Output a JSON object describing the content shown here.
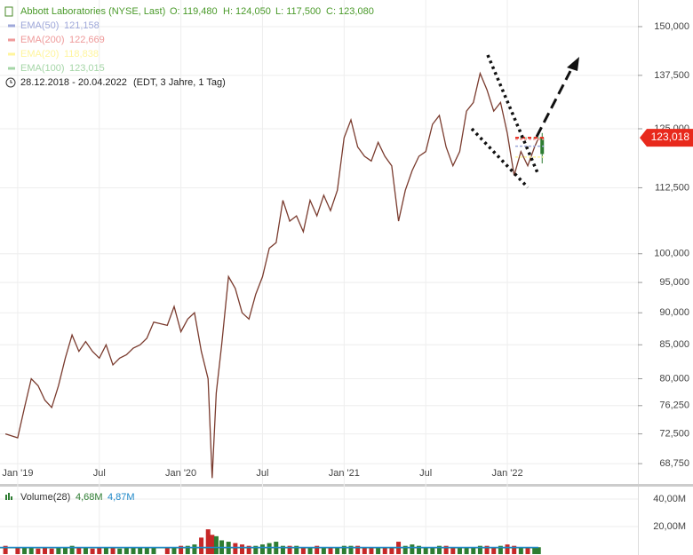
{
  "chart_data": [
    {
      "type": "line",
      "title": "Abbott Laboratories (NYSE, Last)",
      "ohlc": [
        {
          "value": 119480,
          "label": "O: 119,480"
        },
        {
          "value": 124050,
          "label": "H: 124,050"
        },
        {
          "value": 117500,
          "label": "L: 117,500"
        },
        {
          "value": 123080,
          "label": "C: 123,080"
        }
      ],
      "indicators": [
        {
          "name": "EMA(50)",
          "value": 121158,
          "value_label": "121,158",
          "color": "#9fa8da"
        },
        {
          "name": "EMA(200)",
          "value": 122669,
          "value_label": "122,669",
          "color": "#ef9a9a"
        },
        {
          "name": "EMA(20)",
          "value": 118838,
          "value_label": "118,838",
          "color": "#fff59d"
        },
        {
          "name": "EMA(100)",
          "value": 123015,
          "value_label": "123,015",
          "color": "#a5d6a7"
        }
      ],
      "date_range": "28.12.2018 - 20.04.2022",
      "range_note": "(EDT, 3 Jahre, 1 Tag)",
      "last_price": {
        "value": 123018,
        "label": "123,018",
        "color": "#e8291c"
      },
      "log_y": true,
      "grid": true,
      "up_color": "#2e7d32",
      "down_color": "#c62828",
      "x": [
        -0.9,
        0,
        0.5,
        1,
        1.5,
        2,
        2.5,
        3,
        3.5,
        4,
        4.5,
        5,
        5.5,
        6,
        6.5,
        7,
        7.5,
        8,
        8.5,
        9,
        9.5,
        10,
        11,
        11.5,
        12,
        12.5,
        13,
        13.5,
        14,
        14.3,
        14.6,
        15,
        15.5,
        16,
        16.5,
        17,
        17.5,
        18,
        18.5,
        19,
        19.5,
        20,
        20.5,
        21,
        21.5,
        22,
        22.5,
        23,
        23.5,
        24,
        24.5,
        25,
        25.5,
        26,
        26.5,
        27,
        27.5,
        28,
        28.5,
        29,
        29.5,
        30,
        30.5,
        31,
        31.5,
        32,
        32.5,
        33,
        33.5,
        34,
        34.5,
        35,
        35.5,
        36,
        36.5,
        37,
        37.5,
        38,
        38.3
      ],
      "series": [
        {
          "name": "Abbott Laboratories",
          "color": "#7a3b2e",
          "values": [
            72500,
            72000,
            76000,
            80000,
            79000,
            77000,
            76000,
            79000,
            83000,
            86500,
            84000,
            85500,
            84000,
            83000,
            85000,
            82000,
            83000,
            83500,
            84500,
            85000,
            86000,
            88500,
            88000,
            91000,
            87000,
            89000,
            90000,
            84000,
            80000,
            67000,
            78000,
            85000,
            96000,
            94000,
            90000,
            89000,
            93000,
            96000,
            101000,
            102000,
            110000,
            106000,
            107000,
            104000,
            110000,
            107000,
            111000,
            108000,
            112000,
            123000,
            127000,
            121000,
            119000,
            118000,
            122000,
            119000,
            117000,
            106000,
            112000,
            116000,
            119000,
            120000,
            126000,
            128000,
            121000,
            117000,
            120000,
            129000,
            131000,
            138000,
            134000,
            129000,
            131000,
            124000,
            115000,
            120000,
            117000,
            121000,
            123000
          ]
        }
      ],
      "xlim": [
        -1.3,
        45.6
      ],
      "xticks": [
        {
          "value": 0,
          "label": "Jan '19"
        },
        {
          "value": 6,
          "label": "Jul"
        },
        {
          "value": 12,
          "label": "Jan '20"
        },
        {
          "value": 18,
          "label": "Jul"
        },
        {
          "value": 24,
          "label": "Jan '21"
        },
        {
          "value": 30,
          "label": "Jul"
        },
        {
          "value": 36,
          "label": "Jan '22"
        }
      ],
      "ylim": [
        66300,
        157300
      ],
      "yticks": [
        {
          "value": 150000,
          "label": "150,000"
        },
        {
          "value": 137500,
          "label": "137,500"
        },
        {
          "value": 125000,
          "label": "125,000"
        },
        {
          "value": 112500,
          "label": "112,500"
        },
        {
          "value": 100000,
          "label": "100,000"
        },
        {
          "value": 95000,
          "label": "95,000"
        },
        {
          "value": 90000,
          "label": "90,000"
        },
        {
          "value": 85000,
          "label": "85,000"
        },
        {
          "value": 80000,
          "label": "80,000"
        },
        {
          "value": 76250,
          "label": "76,250"
        },
        {
          "value": 72500,
          "label": "72,500"
        },
        {
          "value": 68750,
          "label": "68,750"
        }
      ]
    },
    {
      "type": "bar",
      "title": "Volume(28)",
      "averages": [
        {
          "value": 4.68,
          "label": "4,68M",
          "color": "#2e7d32"
        },
        {
          "value": 4.87,
          "label": "4,87M",
          "color": "#1e88c8"
        }
      ],
      "x": [
        -0.9,
        0,
        0.5,
        1,
        1.5,
        2,
        2.5,
        3,
        3.5,
        4,
        4.5,
        5,
        5.5,
        6,
        6.5,
        7,
        7.5,
        8,
        8.5,
        9,
        9.5,
        10,
        11,
        11.5,
        12,
        12.5,
        13,
        13.5,
        14,
        14.3,
        14.6,
        15,
        15.5,
        16,
        16.5,
        17,
        17.5,
        18,
        18.5,
        19,
        19.5,
        20,
        20.5,
        21,
        21.5,
        22,
        22.5,
        23,
        23.5,
        24,
        24.5,
        25,
        25.5,
        26,
        26.5,
        27,
        27.5,
        28,
        28.5,
        29,
        29.5,
        30,
        30.5,
        31,
        31.5,
        32,
        32.5,
        33,
        33.5,
        34,
        34.5,
        35,
        35.5,
        36,
        36.5,
        37,
        37.5,
        38,
        38.3
      ],
      "values": [
        6,
        5,
        5,
        5,
        4,
        5,
        4,
        5,
        5,
        6,
        5,
        5,
        4,
        5,
        5,
        5,
        4,
        5,
        5,
        5,
        5,
        5,
        5,
        5,
        6,
        6,
        7,
        12,
        18,
        14,
        13,
        10,
        9,
        8,
        7,
        6,
        6,
        7,
        8,
        9,
        6,
        6,
        6,
        5,
        5,
        6,
        5,
        5,
        5,
        6,
        6,
        6,
        5,
        5,
        5,
        5,
        5,
        9,
        6,
        7,
        6,
        5,
        5,
        6,
        6,
        5,
        5,
        5,
        5,
        6,
        6,
        5,
        6,
        7,
        6,
        5,
        5,
        5,
        5
      ],
      "color": "#c62828",
      "xlim": [
        -1.3,
        45.6
      ],
      "ylim": [
        0,
        49
      ],
      "yticks": [
        {
          "value": 40,
          "label": "40,00M"
        },
        {
          "value": 20,
          "label": "20,00M"
        }
      ]
    }
  ]
}
